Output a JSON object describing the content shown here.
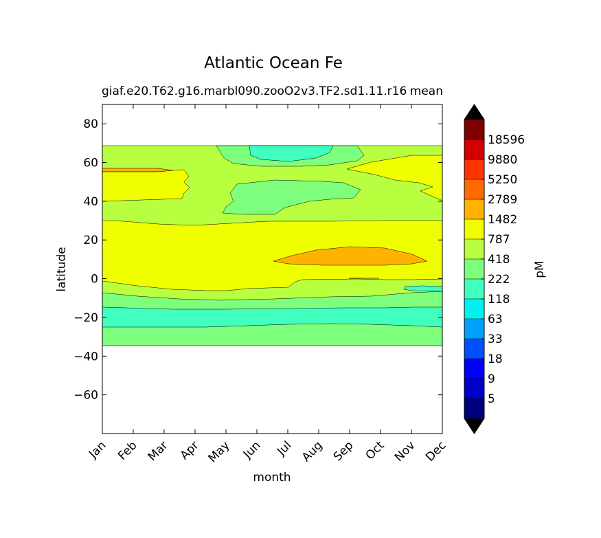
{
  "chart_data": {
    "type": "heatmap",
    "title": "Atlantic Ocean Fe",
    "subtitle_left": "giaf.e20.T62.g16.marbl090.zooO2v3.TF2.sd1.11.r16",
    "subtitle_right": "mean",
    "xlabel": "month",
    "ylabel": "latitude",
    "x_categories": [
      "Jan",
      "Feb",
      "Mar",
      "Apr",
      "May",
      "Jun",
      "Jul",
      "Aug",
      "Sep",
      "Oct",
      "Nov",
      "Dec"
    ],
    "xlim": [
      0,
      11
    ],
    "ylim": [
      -80,
      90
    ],
    "y_ticks": [
      80,
      60,
      40,
      20,
      0,
      -20,
      -40,
      -60
    ],
    "y_tick_labels": [
      "80",
      "60",
      "40",
      "20",
      "0",
      "−20",
      "−40",
      "−60"
    ],
    "data_lat_range": [
      -34,
      69
    ],
    "colorbar": {
      "label": "pM",
      "levels": [
        "5",
        "9",
        "18",
        "33",
        "63",
        "118",
        "222",
        "418",
        "787",
        "1482",
        "2789",
        "5250",
        "9880",
        "18596"
      ],
      "colors": [
        "#00007f",
        "#0000c8",
        "#0000ff",
        "#0050ff",
        "#00a0ff",
        "#00f0f0",
        "#40ffbf",
        "#7dff7d",
        "#b8ff40",
        "#f0ff00",
        "#ffb300",
        "#ff6a00",
        "#ff3300",
        "#d20000",
        "#800000"
      ],
      "under_color": "#000000",
      "over_color": "#000000"
    },
    "regions": [
      {
        "name": "band-north-green-high",
        "level": "418-787",
        "lat": [
          62,
          69
        ]
      },
      {
        "name": "band-north-cyan-high",
        "level": "222-418",
        "lat": [
          60,
          69
        ],
        "months": [
          4.8,
          6.8
        ]
      },
      {
        "name": "band-north-green",
        "level": "418-787",
        "lat": [
          30,
          64
        ]
      },
      {
        "name": "band-north-cyan",
        "level": "222-418",
        "lat": [
          34,
          52
        ],
        "months": [
          3.9,
          7.8
        ]
      },
      {
        "name": "band-orange-north",
        "level": "1482-2789",
        "lat": [
          55,
          57
        ],
        "months": [
          0,
          1.7
        ]
      },
      {
        "name": "band-equatorial-yellow",
        "level": "787-1482",
        "lat": [
          -5,
          30
        ]
      },
      {
        "name": "band-orange-tropic",
        "level": "1482-2789",
        "lat": [
          7,
          17
        ],
        "months": [
          5.5,
          10.5
        ]
      },
      {
        "name": "band-south-green",
        "level": "418-787",
        "lat": [
          -8,
          0
        ]
      },
      {
        "name": "band-south-lightgreen",
        "level": "222-418",
        "lat": [
          -14,
          -7
        ]
      },
      {
        "name": "band-south-cyan",
        "level": "118-222",
        "lat": [
          -24,
          -14
        ]
      },
      {
        "name": "band-south-lightgreen-2",
        "level": "222-418",
        "lat": [
          -34,
          -23
        ]
      }
    ]
  }
}
